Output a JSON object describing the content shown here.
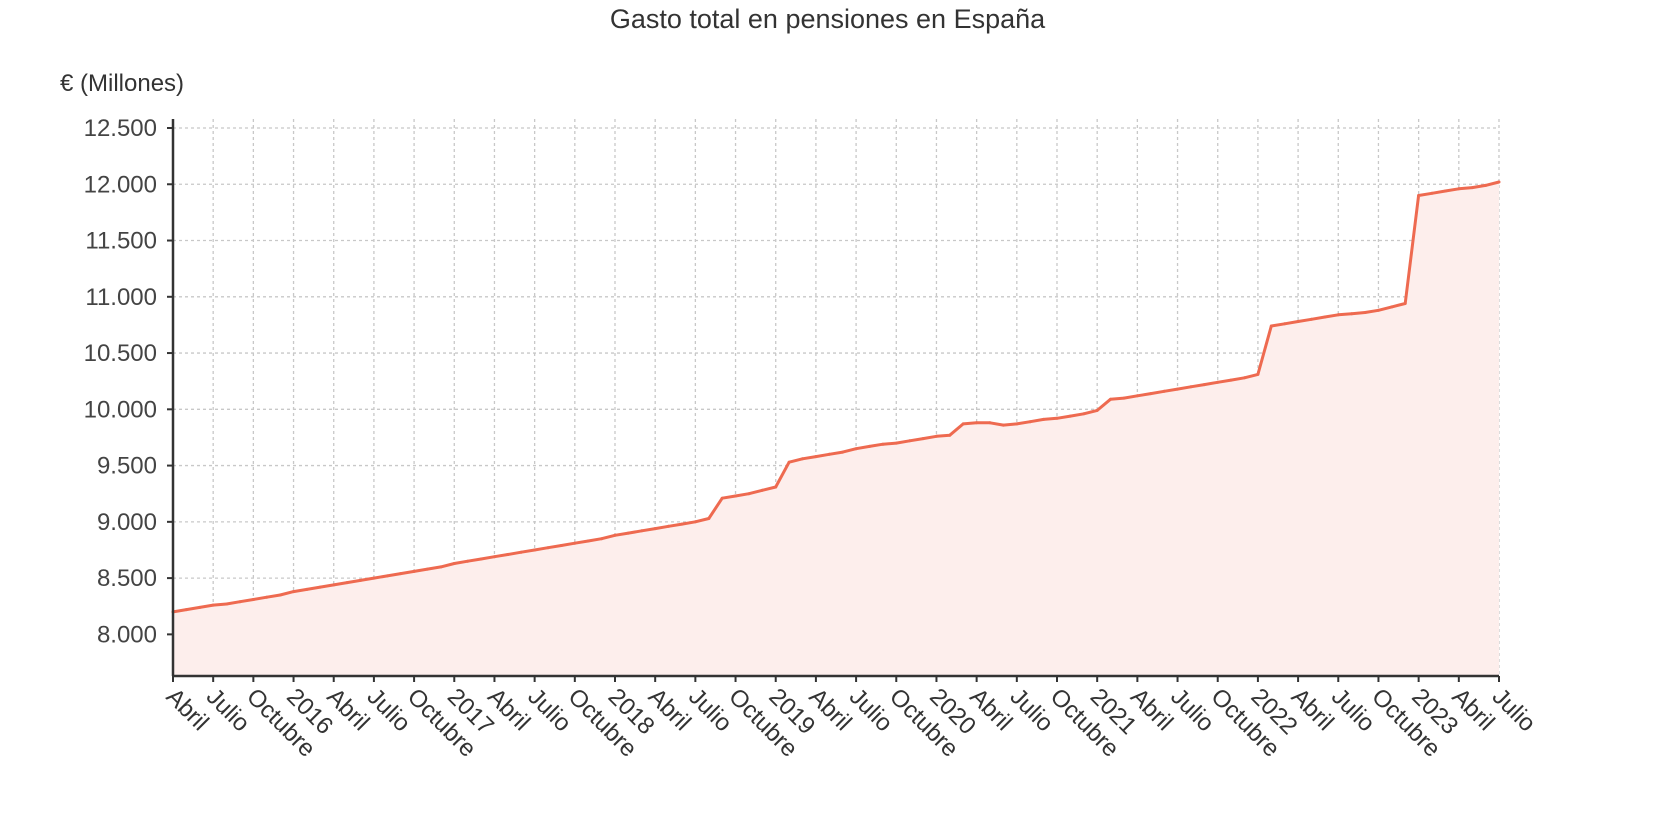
{
  "chart_data": {
    "type": "area",
    "title": "Gasto total en pensiones en España",
    "ylabel": "€ (Millones)",
    "xlabel": "",
    "ylim": [
      7630,
      12580
    ],
    "yticks": [
      {
        "value": 8000,
        "label": "8.000"
      },
      {
        "value": 8500,
        "label": "8.500"
      },
      {
        "value": 9000,
        "label": "9.000"
      },
      {
        "value": 9500,
        "label": "9.500"
      },
      {
        "value": 10000,
        "label": "10.000"
      },
      {
        "value": 10500,
        "label": "10.500"
      },
      {
        "value": 11000,
        "label": "11.000"
      },
      {
        "value": 11500,
        "label": "11.500"
      },
      {
        "value": 12000,
        "label": "12.000"
      },
      {
        "value": 12500,
        "label": "12.500"
      }
    ],
    "xlim": [
      "2015-04",
      "2023-07"
    ],
    "xticks": [
      {
        "date": "2015-04",
        "label": "Abril"
      },
      {
        "date": "2015-07",
        "label": "Julio"
      },
      {
        "date": "2015-10",
        "label": "Octubre"
      },
      {
        "date": "2016-01",
        "label": "2016"
      },
      {
        "date": "2016-04",
        "label": "Abril"
      },
      {
        "date": "2016-07",
        "label": "Julio"
      },
      {
        "date": "2016-10",
        "label": "Octubre"
      },
      {
        "date": "2017-01",
        "label": "2017"
      },
      {
        "date": "2017-04",
        "label": "Abril"
      },
      {
        "date": "2017-07",
        "label": "Julio"
      },
      {
        "date": "2017-10",
        "label": "Octubre"
      },
      {
        "date": "2018-01",
        "label": "2018"
      },
      {
        "date": "2018-04",
        "label": "Abril"
      },
      {
        "date": "2018-07",
        "label": "Julio"
      },
      {
        "date": "2018-10",
        "label": "Octubre"
      },
      {
        "date": "2019-01",
        "label": "2019"
      },
      {
        "date": "2019-04",
        "label": "Abril"
      },
      {
        "date": "2019-07",
        "label": "Julio"
      },
      {
        "date": "2019-10",
        "label": "Octubre"
      },
      {
        "date": "2020-01",
        "label": "2020"
      },
      {
        "date": "2020-04",
        "label": "Abril"
      },
      {
        "date": "2020-07",
        "label": "Julio"
      },
      {
        "date": "2020-10",
        "label": "Octubre"
      },
      {
        "date": "2021-01",
        "label": "2021"
      },
      {
        "date": "2021-04",
        "label": "Abril"
      },
      {
        "date": "2021-07",
        "label": "Julio"
      },
      {
        "date": "2021-10",
        "label": "Octubre"
      },
      {
        "date": "2022-01",
        "label": "2022"
      },
      {
        "date": "2022-04",
        "label": "Abril"
      },
      {
        "date": "2022-07",
        "label": "Julio"
      },
      {
        "date": "2022-10",
        "label": "Octubre"
      },
      {
        "date": "2023-01",
        "label": "2023"
      },
      {
        "date": "2023-04",
        "label": "Abril"
      },
      {
        "date": "2023-07",
        "label": "Julio"
      }
    ],
    "grid": true,
    "colors": {
      "line": "#ee6a50",
      "fill": "#fdeeec",
      "grid": "#c8c8c8",
      "axis": "#333333"
    },
    "series": [
      {
        "points": [
          {
            "x": "2015-04",
            "y": 8200
          },
          {
            "x": "2015-05",
            "y": 8220
          },
          {
            "x": "2015-06",
            "y": 8240
          },
          {
            "x": "2015-07",
            "y": 8260
          },
          {
            "x": "2015-08",
            "y": 8270
          },
          {
            "x": "2015-09",
            "y": 8290
          },
          {
            "x": "2015-10",
            "y": 8310
          },
          {
            "x": "2015-11",
            "y": 8330
          },
          {
            "x": "2015-12",
            "y": 8350
          },
          {
            "x": "2016-01",
            "y": 8380
          },
          {
            "x": "2016-02",
            "y": 8400
          },
          {
            "x": "2016-03",
            "y": 8420
          },
          {
            "x": "2016-04",
            "y": 8440
          },
          {
            "x": "2016-05",
            "y": 8460
          },
          {
            "x": "2016-06",
            "y": 8480
          },
          {
            "x": "2016-07",
            "y": 8500
          },
          {
            "x": "2016-08",
            "y": 8520
          },
          {
            "x": "2016-09",
            "y": 8540
          },
          {
            "x": "2016-10",
            "y": 8560
          },
          {
            "x": "2016-11",
            "y": 8580
          },
          {
            "x": "2016-12",
            "y": 8600
          },
          {
            "x": "2017-01",
            "y": 8630
          },
          {
            "x": "2017-02",
            "y": 8650
          },
          {
            "x": "2017-03",
            "y": 8670
          },
          {
            "x": "2017-04",
            "y": 8690
          },
          {
            "x": "2017-05",
            "y": 8710
          },
          {
            "x": "2017-06",
            "y": 8730
          },
          {
            "x": "2017-07",
            "y": 8750
          },
          {
            "x": "2017-08",
            "y": 8770
          },
          {
            "x": "2017-09",
            "y": 8790
          },
          {
            "x": "2017-10",
            "y": 8810
          },
          {
            "x": "2017-11",
            "y": 8830
          },
          {
            "x": "2017-12",
            "y": 8850
          },
          {
            "x": "2018-01",
            "y": 8880
          },
          {
            "x": "2018-02",
            "y": 8900
          },
          {
            "x": "2018-03",
            "y": 8920
          },
          {
            "x": "2018-04",
            "y": 8940
          },
          {
            "x": "2018-05",
            "y": 8960
          },
          {
            "x": "2018-06",
            "y": 8980
          },
          {
            "x": "2018-07",
            "y": 9000
          },
          {
            "x": "2018-08",
            "y": 9030
          },
          {
            "x": "2018-09",
            "y": 9210
          },
          {
            "x": "2018-10",
            "y": 9230
          },
          {
            "x": "2018-11",
            "y": 9250
          },
          {
            "x": "2018-12",
            "y": 9280
          },
          {
            "x": "2019-01",
            "y": 9310
          },
          {
            "x": "2019-02",
            "y": 9530
          },
          {
            "x": "2019-03",
            "y": 9560
          },
          {
            "x": "2019-04",
            "y": 9580
          },
          {
            "x": "2019-05",
            "y": 9600
          },
          {
            "x": "2019-06",
            "y": 9620
          },
          {
            "x": "2019-07",
            "y": 9650
          },
          {
            "x": "2019-08",
            "y": 9670
          },
          {
            "x": "2019-09",
            "y": 9690
          },
          {
            "x": "2019-10",
            "y": 9700
          },
          {
            "x": "2019-11",
            "y": 9720
          },
          {
            "x": "2019-12",
            "y": 9740
          },
          {
            "x": "2020-01",
            "y": 9760
          },
          {
            "x": "2020-02",
            "y": 9770
          },
          {
            "x": "2020-03",
            "y": 9870
          },
          {
            "x": "2020-04",
            "y": 9880
          },
          {
            "x": "2020-05",
            "y": 9880
          },
          {
            "x": "2020-06",
            "y": 9860
          },
          {
            "x": "2020-07",
            "y": 9870
          },
          {
            "x": "2020-08",
            "y": 9890
          },
          {
            "x": "2020-09",
            "y": 9910
          },
          {
            "x": "2020-10",
            "y": 9920
          },
          {
            "x": "2020-11",
            "y": 9940
          },
          {
            "x": "2020-12",
            "y": 9960
          },
          {
            "x": "2021-01",
            "y": 9990
          },
          {
            "x": "2021-02",
            "y": 10090
          },
          {
            "x": "2021-03",
            "y": 10100
          },
          {
            "x": "2021-04",
            "y": 10120
          },
          {
            "x": "2021-05",
            "y": 10140
          },
          {
            "x": "2021-06",
            "y": 10160
          },
          {
            "x": "2021-07",
            "y": 10180
          },
          {
            "x": "2021-08",
            "y": 10200
          },
          {
            "x": "2021-09",
            "y": 10220
          },
          {
            "x": "2021-10",
            "y": 10240
          },
          {
            "x": "2021-11",
            "y": 10260
          },
          {
            "x": "2021-12",
            "y": 10280
          },
          {
            "x": "2022-01",
            "y": 10310
          },
          {
            "x": "2022-02",
            "y": 10740
          },
          {
            "x": "2022-03",
            "y": 10760
          },
          {
            "x": "2022-04",
            "y": 10780
          },
          {
            "x": "2022-05",
            "y": 10800
          },
          {
            "x": "2022-06",
            "y": 10820
          },
          {
            "x": "2022-07",
            "y": 10840
          },
          {
            "x": "2022-08",
            "y": 10850
          },
          {
            "x": "2022-09",
            "y": 10860
          },
          {
            "x": "2022-10",
            "y": 10880
          },
          {
            "x": "2022-11",
            "y": 10910
          },
          {
            "x": "2022-12",
            "y": 10940
          },
          {
            "x": "2023-01",
            "y": 11900
          },
          {
            "x": "2023-02",
            "y": 11920
          },
          {
            "x": "2023-03",
            "y": 11940
          },
          {
            "x": "2023-04",
            "y": 11960
          },
          {
            "x": "2023-05",
            "y": 11970
          },
          {
            "x": "2023-06",
            "y": 11990
          },
          {
            "x": "2023-07",
            "y": 12020
          }
        ]
      }
    ]
  }
}
